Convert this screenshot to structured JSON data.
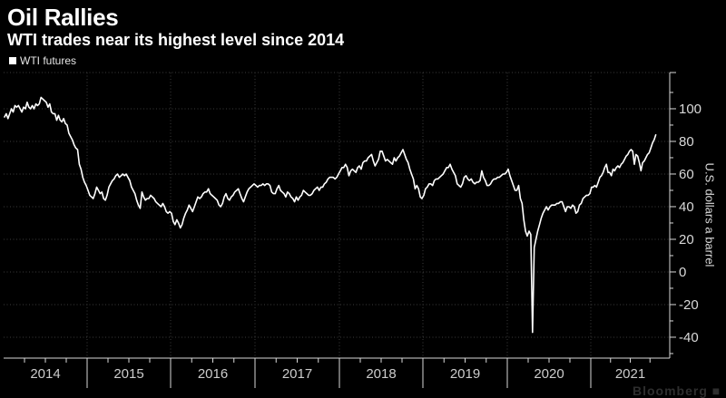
{
  "header": {
    "title": "Oil Rallies",
    "subtitle": "WTI trades near its highest level since 2014"
  },
  "legend": {
    "items": [
      {
        "label": "WTI futures",
        "swatch_color": "#ffffff"
      }
    ]
  },
  "watermark": "Bloomberg ■",
  "chart_data": {
    "type": "line",
    "title": "Oil Rallies",
    "subtitle": "WTI trades near its highest level since 2014",
    "ylabel": "U.S. dollars a barrel",
    "xlabel": "",
    "legend_position": "top-left",
    "grid": "dotted",
    "background_color": "#000000",
    "line_color": "#ffffff",
    "axis_color": "#d9d9d9",
    "grid_color": "#3b3b3b",
    "tick_label_color": "#d9d9d9",
    "year_label_color": "#cccccc",
    "ylim": [
      -52.8,
      122.2
    ],
    "y_ticks": [
      100,
      80,
      60,
      40,
      20,
      0,
      -20,
      -40
    ],
    "y_minor_tick_step": 10,
    "x_years": [
      "2014",
      "2015",
      "2016",
      "2017",
      "2018",
      "2019",
      "2020",
      "2021"
    ],
    "points_per_year": 48,
    "series": [
      {
        "name": "WTI futures",
        "values_by_year": {
          "2014": [
            95,
            97,
            94,
            97,
            100,
            98,
            102,
            101,
            102,
            100,
            98,
            101,
            100,
            104,
            101,
            100,
            102,
            100,
            103,
            102,
            103,
            107,
            106,
            105,
            104,
            101,
            103,
            98,
            97,
            97,
            93,
            96,
            93,
            92,
            94,
            91,
            90,
            85,
            83,
            81,
            78,
            76,
            75,
            66,
            63,
            58,
            55,
            53
          ],
          "2015": [
            50,
            47,
            46,
            45,
            48,
            52,
            50,
            48,
            49,
            45,
            44,
            47,
            52,
            54,
            56,
            57,
            59,
            60,
            58,
            59,
            60,
            59,
            60,
            58,
            56,
            52,
            50,
            48,
            44,
            41,
            39,
            49,
            46,
            44,
            45,
            45,
            47,
            46,
            45,
            43,
            42,
            41,
            40,
            42,
            40,
            37,
            36,
            37
          ],
          "2016": [
            36,
            31,
            29,
            32,
            30,
            27,
            29,
            33,
            36,
            38,
            41,
            39,
            37,
            40,
            43,
            46,
            45,
            46,
            48,
            49,
            49,
            51,
            48,
            47,
            46,
            45,
            44,
            41,
            40,
            42,
            46,
            48,
            45,
            44,
            46,
            47,
            49,
            50,
            51,
            48,
            45,
            43,
            46,
            49,
            51,
            52,
            53,
            54
          ],
          "2017": [
            53,
            52,
            53,
            53,
            54,
            53,
            54,
            54,
            53,
            49,
            48,
            48,
            51,
            53,
            50,
            49,
            48,
            46,
            49,
            48,
            46,
            45,
            43,
            46,
            44,
            46,
            47,
            50,
            49,
            48,
            47,
            47,
            48,
            50,
            51,
            52,
            50,
            52,
            52,
            54,
            55,
            57,
            58,
            58,
            58,
            57,
            58,
            60
          ],
          "2018": [
            62,
            64,
            64,
            66,
            64,
            59,
            62,
            63,
            62,
            61,
            64,
            65,
            63,
            67,
            68,
            68,
            70,
            71,
            72,
            68,
            65,
            67,
            69,
            74,
            74,
            71,
            68,
            69,
            68,
            67,
            66,
            70,
            68,
            70,
            71,
            73,
            75,
            72,
            69,
            67,
            63,
            60,
            57,
            51,
            53,
            51,
            46,
            45
          ],
          "2019": [
            47,
            51,
            52,
            54,
            54,
            53,
            56,
            57,
            57,
            58,
            59,
            60,
            62,
            64,
            64,
            66,
            63,
            61,
            59,
            54,
            53,
            52,
            54,
            58,
            59,
            57,
            56,
            57,
            55,
            54,
            55,
            55,
            56,
            62,
            58,
            56,
            53,
            53,
            54,
            56,
            57,
            57,
            58,
            58,
            59,
            60,
            60,
            61
          ],
          "2020": [
            63,
            59,
            56,
            53,
            50,
            50,
            53,
            45,
            42,
            32,
            25,
            22,
            25,
            23,
            -37,
            15,
            20,
            25,
            29,
            33,
            36,
            38,
            40,
            38,
            40,
            41,
            41,
            41,
            42,
            42,
            43,
            43,
            40,
            37,
            40,
            40,
            39,
            41,
            40,
            36,
            37,
            41,
            42,
            45,
            46,
            47,
            47,
            48
          ],
          "2021": [
            52,
            52,
            53,
            52,
            55,
            58,
            59,
            61,
            64,
            66,
            61,
            61,
            59,
            63,
            62,
            64,
            65,
            64,
            66,
            67,
            69,
            71,
            72,
            74,
            75,
            74,
            66,
            72,
            71,
            67,
            62,
            67,
            68,
            70,
            72,
            73,
            76,
            79,
            81,
            84
          ]
        }
      }
    ]
  }
}
